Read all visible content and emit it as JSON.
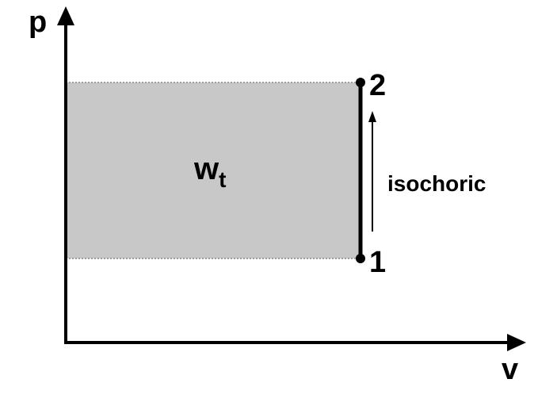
{
  "axes": {
    "y_label": "p",
    "x_label": "v"
  },
  "area_label": {
    "main": "w",
    "subscript": "t"
  },
  "states": {
    "start": "1",
    "end": "2"
  },
  "process_label": "isochoric",
  "colors": {
    "area_fill": "#c8c8c8",
    "lines": "#000000",
    "background": "#ffffff"
  }
}
